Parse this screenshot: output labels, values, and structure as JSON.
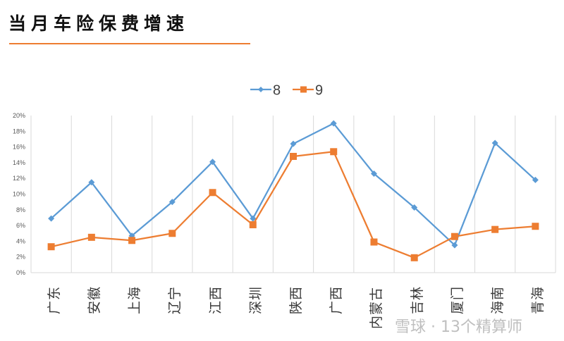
{
  "header": {
    "title": "当月车险保费增速",
    "accent_color": "#ed7d31"
  },
  "watermark": {
    "text": "雪球 · 13个精算师"
  },
  "chart_data": {
    "type": "line",
    "title": "当月车险保费增速",
    "xlabel": "",
    "ylabel": "",
    "ylim": [
      0,
      20
    ],
    "y_ticks": [
      "0%",
      "2%",
      "4%",
      "6%",
      "8%",
      "10%",
      "12%",
      "14%",
      "16%",
      "18%",
      "20%"
    ],
    "grid": "vertical category gridlines",
    "legend_position": "top",
    "categories": [
      "广东",
      "安徽",
      "上海",
      "辽宁",
      "江西",
      "深圳",
      "陕西",
      "广西",
      "内蒙古",
      "吉林",
      "厦门",
      "海南",
      "青海"
    ],
    "series": [
      {
        "name": "8",
        "color": "#5b9bd5",
        "marker": "diamond",
        "values": [
          6.9,
          11.5,
          4.7,
          9.0,
          14.1,
          6.9,
          16.4,
          19.0,
          12.6,
          8.3,
          3.5,
          16.5,
          11.8
        ]
      },
      {
        "name": "9",
        "color": "#ed7d31",
        "marker": "square",
        "values": [
          3.3,
          4.5,
          4.1,
          5.0,
          10.2,
          6.1,
          14.8,
          15.4,
          3.9,
          1.9,
          4.6,
          5.5,
          5.9
        ]
      }
    ]
  }
}
